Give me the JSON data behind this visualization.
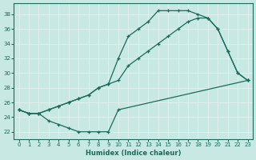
{
  "xlabel": "Humidex (Indice chaleur)",
  "xlim": [
    -0.5,
    23.5
  ],
  "ylim": [
    21.0,
    39.5
  ],
  "xticks": [
    0,
    1,
    2,
    3,
    4,
    5,
    6,
    7,
    8,
    9,
    10,
    11,
    12,
    13,
    14,
    15,
    16,
    17,
    18,
    19,
    20,
    21,
    22,
    23
  ],
  "yticks": [
    22,
    24,
    26,
    28,
    30,
    32,
    34,
    36,
    38
  ],
  "bg_color": "#c8e8e4",
  "line_color": "#1a6b5a",
  "grid_color": "#e0f0ee",
  "curve_a_x": [
    0,
    1,
    2,
    3,
    4,
    5,
    6,
    7,
    8,
    9,
    10,
    23
  ],
  "curve_a_y": [
    25,
    24.5,
    24.5,
    23.5,
    23,
    22.5,
    22,
    22,
    22,
    22,
    25,
    29
  ],
  "curve_b_x": [
    0,
    1,
    2,
    3,
    4,
    5,
    6,
    7,
    8,
    9,
    10,
    11,
    12,
    13,
    14,
    15,
    16,
    17,
    18,
    19,
    20,
    21,
    22,
    23
  ],
  "curve_b_y": [
    25,
    24.5,
    24.5,
    25,
    25.5,
    26,
    26.5,
    27,
    28,
    28.5,
    29,
    31,
    32,
    33,
    34,
    35,
    36,
    37,
    37.5,
    37.5,
    36,
    33,
    30,
    29
  ],
  "curve_c_x": [
    0,
    1,
    2,
    3,
    4,
    5,
    6,
    7,
    8,
    9,
    10,
    11,
    12,
    13,
    14,
    15,
    16,
    17,
    18,
    19,
    20,
    21,
    22,
    23
  ],
  "curve_c_y": [
    25,
    24.5,
    24.5,
    25,
    25.5,
    26,
    26.5,
    27,
    28,
    28.5,
    32,
    35,
    36,
    37,
    38.5,
    38.5,
    38.5,
    38.5,
    38,
    37.5,
    36,
    33,
    30,
    29
  ]
}
